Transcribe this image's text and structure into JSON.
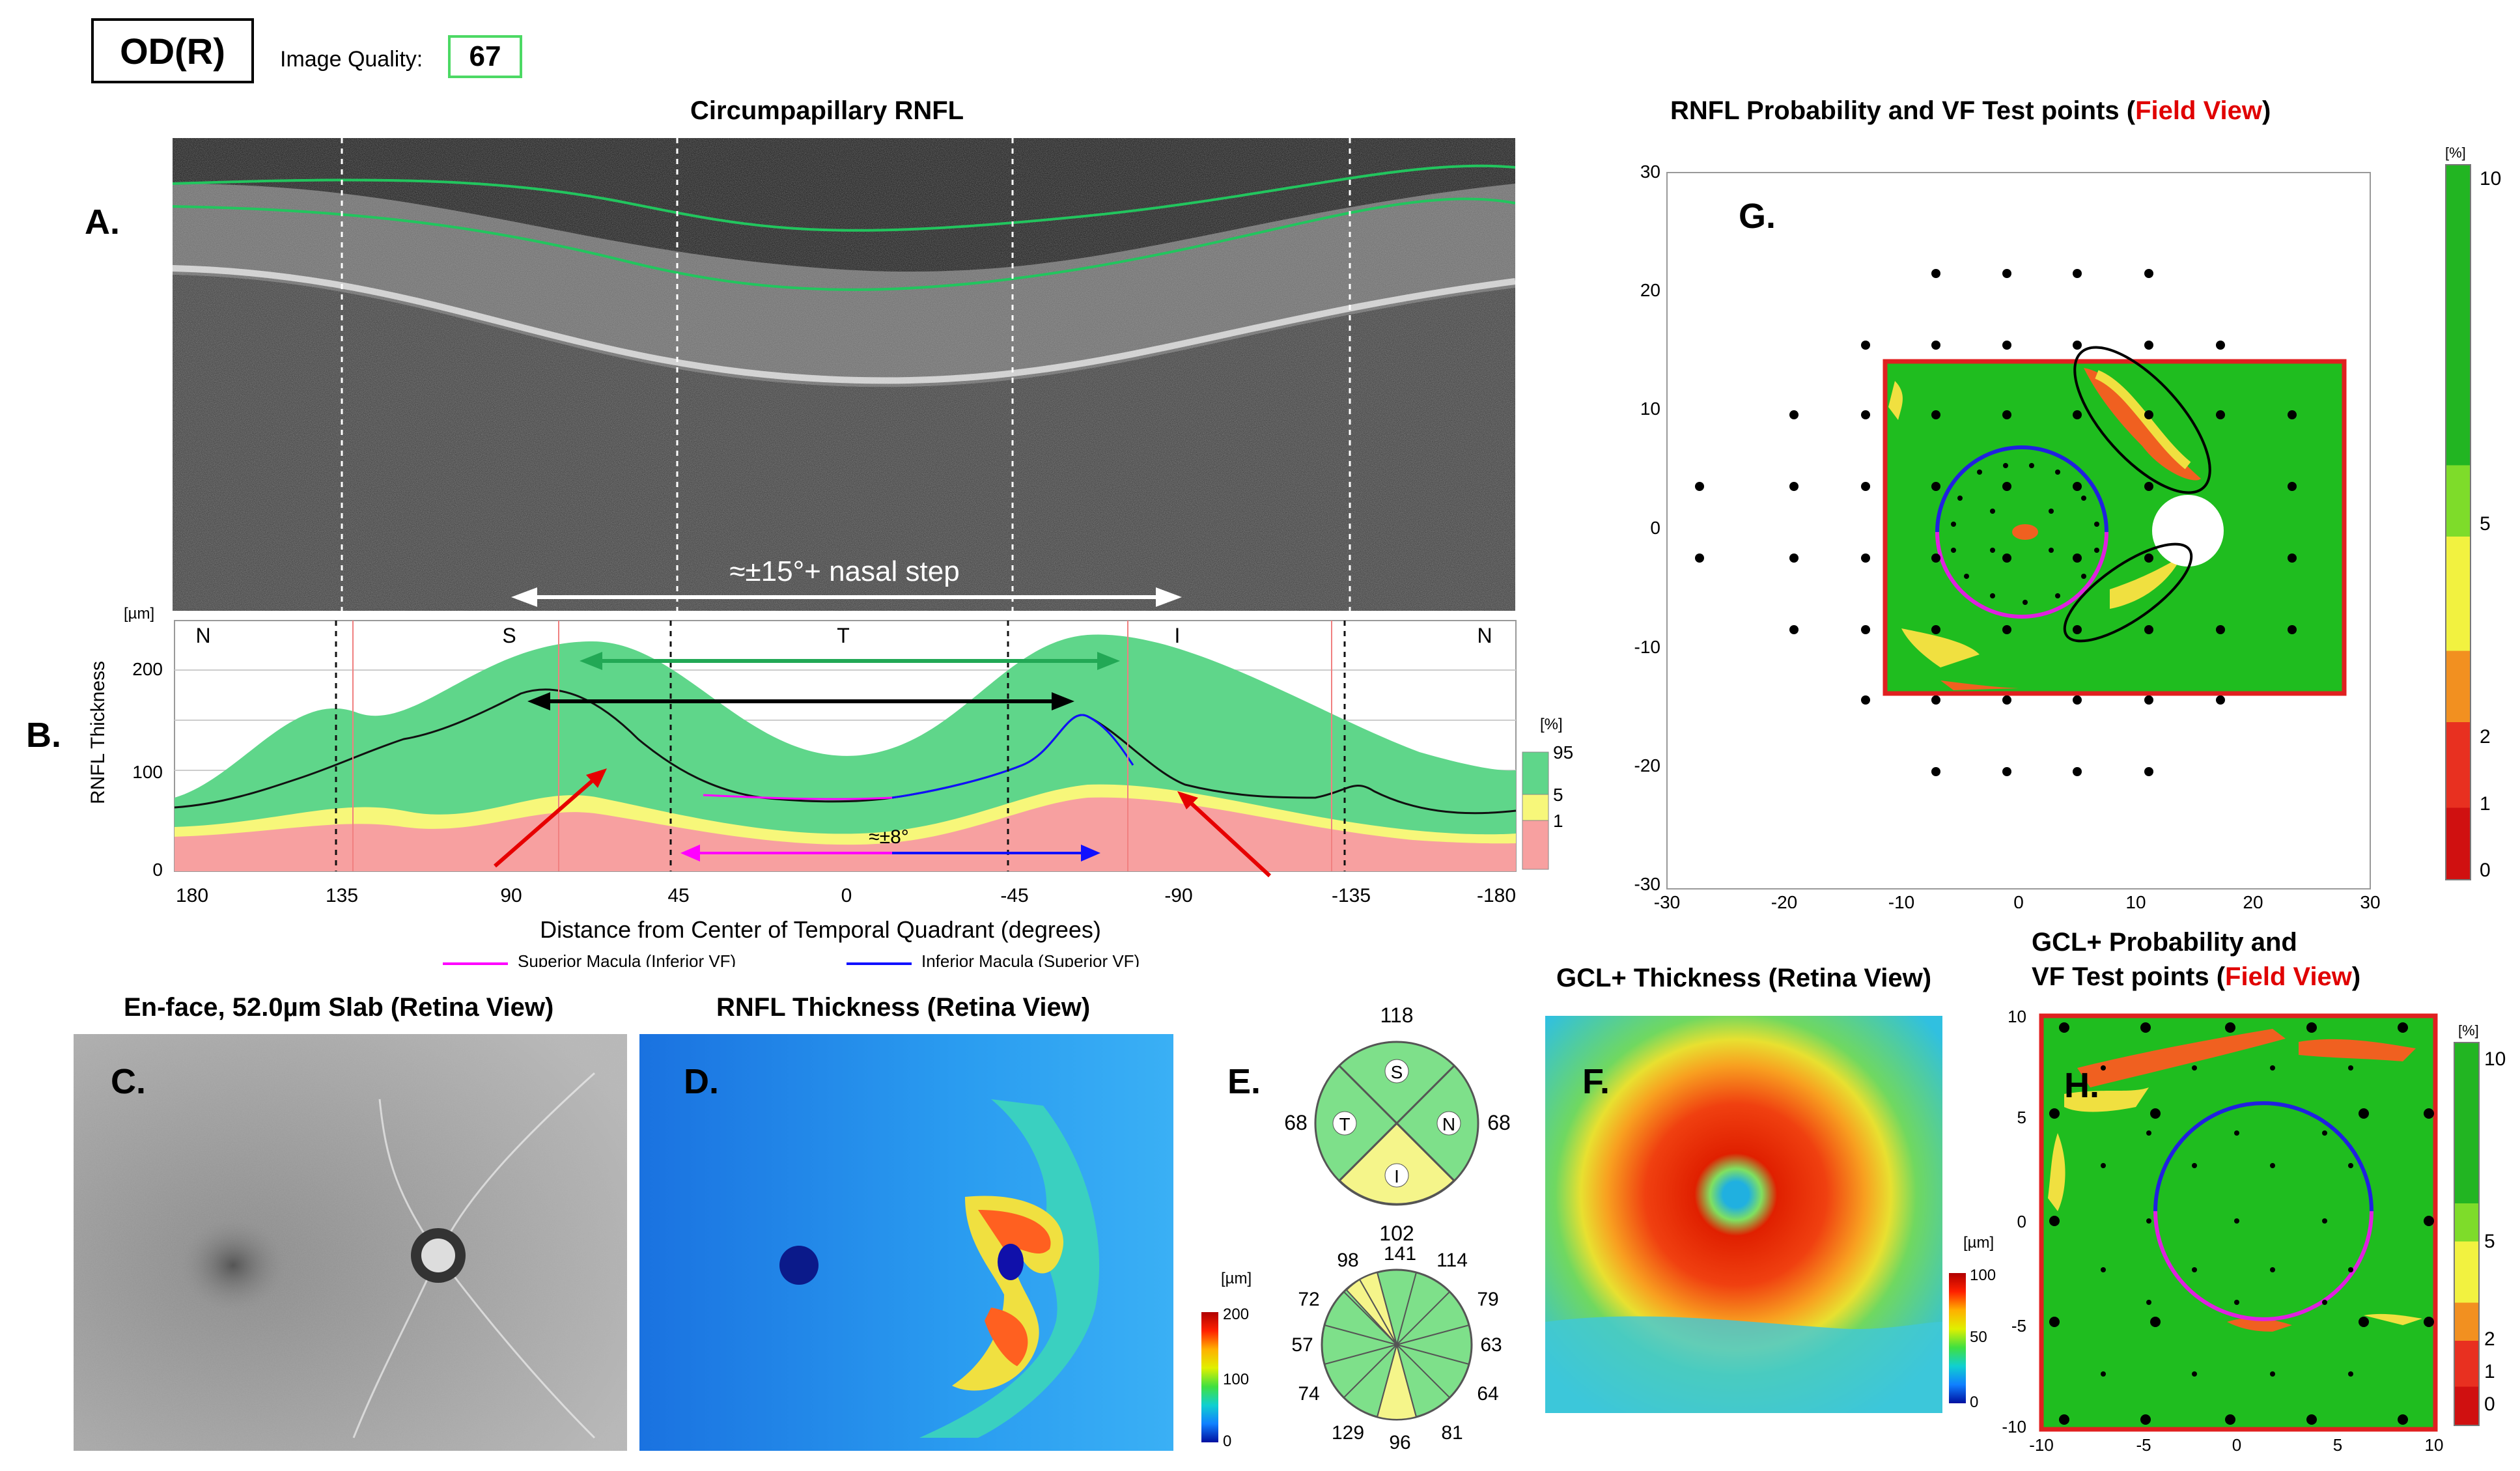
{
  "header": {
    "eye": "OD(R)",
    "image_quality_label": "Image Quality:",
    "image_quality_value": "67"
  },
  "panelA": {
    "label": "A.",
    "title": "Circumpapillary RNFL",
    "annotation": "≈±15°+ nasal step"
  },
  "panelB": {
    "label": "B.",
    "unit": "[µm]",
    "ylabel": "RNFL Thickness",
    "yticks": [
      "200",
      "100",
      "0"
    ],
    "sectors": [
      "N",
      "S",
      "T",
      "I",
      "N"
    ],
    "xticks": [
      "180",
      "135",
      "90",
      "45",
      "0",
      "-45",
      "-90",
      "-135",
      "-180"
    ],
    "xlabel": "Distance from Center of Temporal Quadrant (degrees)",
    "annotation": "≈±8°",
    "legend_sup": "Superior Macula (Inferior VF)",
    "legend_inf": "Inferior Macula (Superior VF)",
    "scale_unit": "[%]",
    "scale_labels": [
      "95",
      "5",
      "1"
    ],
    "colors": {
      "green": "#5fd68a",
      "yellow": "#f7f77a",
      "red": "#f7a0a0",
      "magenta": "#ff00ff",
      "blue": "#1010ff"
    }
  },
  "panelC": {
    "label": "C.",
    "title": "En-face, 52.0µm Slab (Retina View)"
  },
  "panelD": {
    "label": "D.",
    "title": "RNFL Thickness (Retina View)",
    "scale_unit": "[µm]",
    "scale_labels": [
      "200",
      "100",
      "0"
    ]
  },
  "panelE": {
    "label": "E.",
    "quadrants": {
      "top": "118",
      "left": "68",
      "right": "68",
      "bottom": "102",
      "S": "S",
      "T": "T",
      "N": "N",
      "I": "I"
    },
    "clock": {
      "c1": "98",
      "c2": "141",
      "c3": "114",
      "c4": "72",
      "c5": "79",
      "c6": "57",
      "c7": "63",
      "c8": "74",
      "c9": "64",
      "c10": "129",
      "c11": "96",
      "c12": "81"
    }
  },
  "panelF": {
    "label": "F.",
    "title": "GCL+ Thickness (Retina View)",
    "scale_unit": "[µm]",
    "scale_labels": [
      "100",
      "50",
      "0"
    ]
  },
  "panelG": {
    "label": "G.",
    "title_a": "RNFL Probability and VF Test points (",
    "title_b": "Field View",
    "title_c": ")",
    "yticks": [
      "30",
      "20",
      "10",
      "0",
      "-10",
      "-20",
      "-30"
    ],
    "xticks": [
      "-30",
      "-20",
      "-10",
      "0",
      "10",
      "20",
      "30"
    ],
    "scale_unit": "[%]",
    "scale_labels": [
      "10",
      "5",
      "2",
      "1",
      "0"
    ]
  },
  "panelH": {
    "label": "H.",
    "title_a": "GCL+ Probability and",
    "title_b": "VF Test points (",
    "title_c": "Field View",
    "title_d": ")",
    "yticks": [
      "10",
      "5",
      "0",
      "-5",
      "-10"
    ],
    "xticks": [
      "-10",
      "-5",
      "0",
      "5",
      "10"
    ],
    "scale_unit": "[%]",
    "scale_labels": [
      "10",
      "5",
      "2",
      "1",
      "0"
    ]
  }
}
